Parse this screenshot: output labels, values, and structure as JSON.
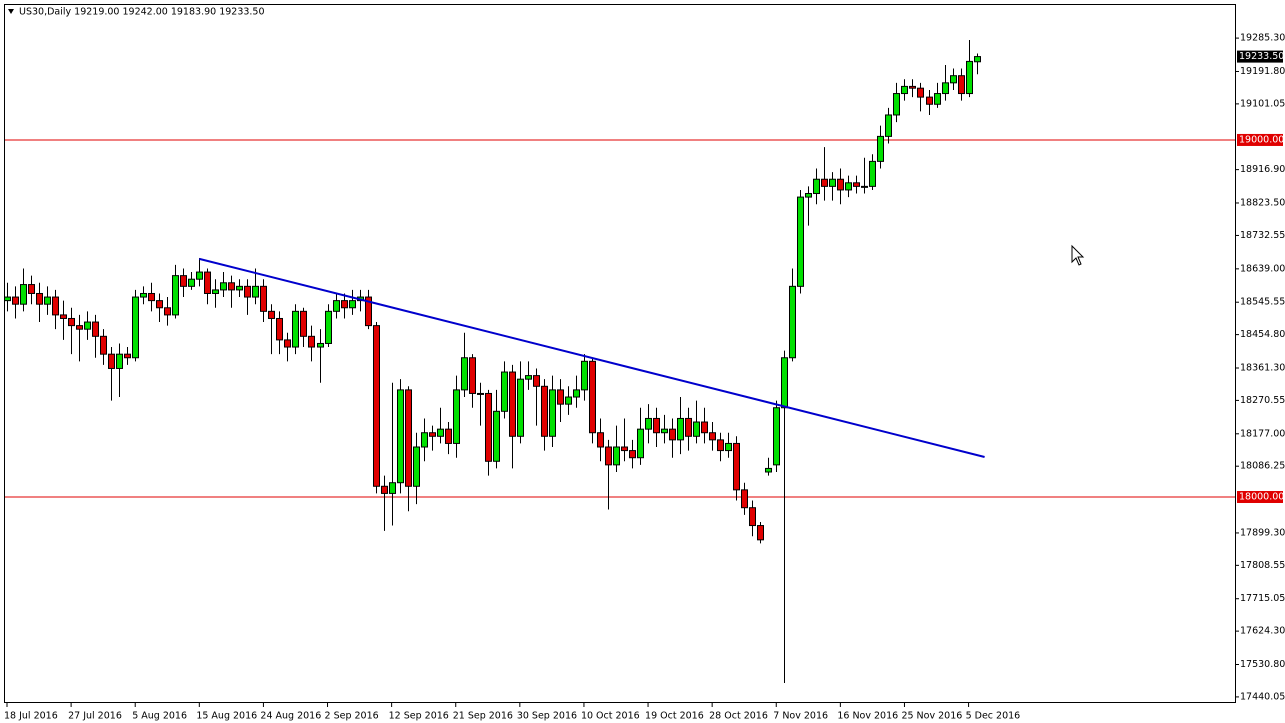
{
  "chart_data": {
    "type": "candlestick",
    "title": "US30,Daily  19219.00 19242.00 19183.90 19233.50",
    "categories": [
      "18 Jul 2016",
      null,
      null,
      null,
      null,
      null,
      null,
      null,
      "27 Jul 2016",
      null,
      null,
      null,
      null,
      null,
      null,
      null,
      "5 Aug 2016",
      null,
      null,
      null,
      null,
      null,
      null,
      null,
      "15 Aug 2016",
      null,
      null,
      null,
      null,
      null,
      null,
      null,
      "24 Aug 2016",
      null,
      null,
      null,
      null,
      null,
      null,
      null,
      "2 Sep 2016",
      null,
      null,
      null,
      null,
      null,
      null,
      null,
      "12 Sep 2016",
      null,
      null,
      null,
      null,
      null,
      null,
      null,
      "21 Sep 2016",
      null,
      null,
      null,
      null,
      null,
      null,
      null,
      "30 Sep 2016",
      null,
      null,
      null,
      null,
      null,
      null,
      null,
      "10 Oct 2016",
      null,
      null,
      null,
      null,
      null,
      null,
      null,
      "19 Oct 2016",
      null,
      null,
      null,
      null,
      null,
      null,
      null,
      "28 Oct 2016",
      null,
      null,
      null,
      null,
      null,
      null,
      null,
      "7 Nov 2016",
      null,
      null,
      null,
      null,
      null,
      null,
      null,
      "16 Nov 2016",
      null,
      null,
      null,
      null,
      null,
      null,
      null,
      "25 Nov 2016",
      null,
      null,
      null,
      null,
      null,
      null,
      null,
      "5 Dec 2016",
      null
    ],
    "open": [
      18550,
      18560,
      18540,
      18595,
      18570,
      18540,
      18560,
      18510,
      18500,
      18480,
      18470,
      18490,
      18450,
      18400,
      18360,
      18400,
      18390,
      18560,
      18570,
      18550,
      18530,
      18510,
      18620,
      18590,
      18610,
      18630,
      18570,
      18580,
      18600,
      18580,
      18590,
      18560,
      18590,
      18520,
      18500,
      18440,
      18420,
      18520,
      18450,
      18420,
      18430,
      18520,
      18550,
      18530,
      18550,
      18560,
      18480,
      18030,
      18010,
      18040,
      18300,
      18030,
      18140,
      18180,
      18170,
      18190,
      18150,
      18300,
      18390,
      18290,
      18290,
      18100,
      18240,
      18350,
      18170,
      18330,
      18340,
      18310,
      18170,
      18300,
      18260,
      18280,
      18300,
      18380,
      18180,
      18140,
      18090,
      18140,
      18130,
      18110,
      18190,
      18220,
      18180,
      18190,
      18160,
      18220,
      18170,
      18210,
      18180,
      18160,
      18130,
      18150,
      18020,
      17970,
      17920,
      18070,
      18090,
      18250,
      18390,
      18590,
      18840,
      18850,
      18890,
      18870,
      18890,
      18860,
      18880,
      18870,
      18870,
      18940,
      19010,
      19070,
      19130,
      19150,
      19145,
      19120,
      19100,
      19130,
      19160,
      19180,
      19130,
      19219
    ],
    "high": [
      18600,
      18590,
      18640,
      18620,
      18600,
      18590,
      18580,
      18550,
      18530,
      18510,
      18520,
      18510,
      18470,
      18420,
      18430,
      18420,
      18580,
      18590,
      18600,
      18570,
      18560,
      18650,
      18640,
      18630,
      18669,
      18640,
      18610,
      18630,
      18620,
      18610,
      18610,
      18640,
      18610,
      18540,
      18520,
      18460,
      18540,
      18530,
      18480,
      18470,
      18540,
      18570,
      18570,
      18580,
      18580,
      18580,
      18490,
      18060,
      18320,
      18330,
      18310,
      18180,
      18220,
      18200,
      18250,
      18210,
      18340,
      18460,
      18400,
      18320,
      18300,
      18300,
      18380,
      18370,
      18380,
      18380,
      18360,
      18330,
      18340,
      18330,
      18310,
      18340,
      18400,
      18390,
      18220,
      18160,
      18200,
      18220,
      18160,
      18250,
      18260,
      18250,
      18230,
      18220,
      18280,
      18250,
      18270,
      18250,
      18210,
      18180,
      18180,
      18170,
      18040,
      17990,
      17930,
      18110,
      18270,
      18410,
      18640,
      18860,
      18870,
      18920,
      18980,
      18910,
      18920,
      18900,
      18900,
      18950,
      18960,
      19040,
      19090,
      19160,
      19170,
      19170,
      19160,
      19140,
      19160,
      19210,
      19200,
      19200,
      19280,
      19242
    ],
    "low": [
      18520,
      18500,
      18520,
      18540,
      18490,
      18510,
      18470,
      18440,
      18400,
      18380,
      18440,
      18390,
      18370,
      18270,
      18280,
      18370,
      18380,
      18540,
      18520,
      18490,
      18480,
      18500,
      18560,
      18580,
      18590,
      18540,
      18530,
      18560,
      18530,
      18560,
      18510,
      18540,
      18490,
      18400,
      18400,
      18380,
      18400,
      18420,
      18380,
      18320,
      18420,
      18500,
      18500,
      18510,
      18520,
      18470,
      18010,
      17905,
      17920,
      18010,
      17960,
      17980,
      18100,
      18130,
      18150,
      18120,
      18110,
      18280,
      18250,
      18200,
      18060,
      18080,
      18220,
      18080,
      18150,
      18300,
      18200,
      18130,
      18140,
      18210,
      18230,
      18250,
      18270,
      18150,
      18100,
      17965,
      18070,
      18100,
      18080,
      18090,
      18150,
      18140,
      18150,
      18110,
      18120,
      18130,
      18150,
      18150,
      18130,
      18100,
      18110,
      17990,
      17950,
      17890,
      17870,
      18060,
      18070,
      17479,
      18380,
      18570,
      18760,
      18820,
      18830,
      18830,
      18820,
      18840,
      18850,
      18850,
      18860,
      18920,
      18990,
      19050,
      19110,
      19120,
      19080,
      19070,
      19090,
      19110,
      19140,
      19110,
      19120,
      19183.9
    ],
    "close": [
      18560,
      18540,
      18595,
      18570,
      18540,
      18560,
      18510,
      18500,
      18480,
      18470,
      18490,
      18450,
      18400,
      18360,
      18400,
      18390,
      18560,
      18570,
      18550,
      18530,
      18510,
      18620,
      18590,
      18610,
      18630,
      18570,
      18580,
      18600,
      18580,
      18590,
      18560,
      18590,
      18520,
      18500,
      18440,
      18420,
      18520,
      18450,
      18420,
      18430,
      18520,
      18550,
      18530,
      18550,
      18560,
      18480,
      18030,
      18010,
      18040,
      18300,
      18030,
      18140,
      18180,
      18170,
      18190,
      18150,
      18300,
      18390,
      18290,
      18290,
      18100,
      18240,
      18350,
      18170,
      18330,
      18340,
      18310,
      18170,
      18300,
      18260,
      18280,
      18300,
      18380,
      18180,
      18140,
      18090,
      18140,
      18130,
      18110,
      18190,
      18220,
      18180,
      18190,
      18160,
      18220,
      18170,
      18210,
      18180,
      18160,
      18130,
      18150,
      18020,
      17970,
      17920,
      17880,
      18080,
      18250,
      18390,
      18590,
      18840,
      18850,
      18890,
      18870,
      18890,
      18860,
      18880,
      18870,
      18870,
      18940,
      19010,
      19070,
      19130,
      19150,
      19145,
      19120,
      19100,
      19130,
      19160,
      19180,
      19130,
      19220,
      19233.5
    ],
    "up_color": "#00e000",
    "down_color": "#e00000",
    "xlim": [
      -0.25,
      153.25
    ],
    "ylim": [
      17423,
      19378
    ],
    "yticks": [
      {
        "value": 19285.3,
        "label": "19285.30"
      },
      {
        "value": 19191.8,
        "label": "19191.80"
      },
      {
        "value": 19101.05,
        "label": "19101.05"
      },
      {
        "value": 18916.9,
        "label": "18916.90"
      },
      {
        "value": 18823.5,
        "label": "18823.50"
      },
      {
        "value": 18732.55,
        "label": "18732.55"
      },
      {
        "value": 18639,
        "label": "18639.00"
      },
      {
        "value": 18545.55,
        "label": "18545.55"
      },
      {
        "value": 18454.8,
        "label": "18454.80"
      },
      {
        "value": 18361.3,
        "label": "18361.30"
      },
      {
        "value": 18270.55,
        "label": "18270.55"
      },
      {
        "value": 18177,
        "label": "18177.00"
      },
      {
        "value": 18086.25,
        "label": "18086.25"
      },
      {
        "value": 17899.3,
        "label": "17899.30"
      },
      {
        "value": 17808.55,
        "label": "17808.55"
      },
      {
        "value": 17715.05,
        "label": "17715.05"
      },
      {
        "value": 17624.3,
        "label": "17624.30"
      },
      {
        "value": 17530.8,
        "label": "17530.80"
      },
      {
        "value": 17440.05,
        "label": "17440.05"
      }
    ],
    "hlines": [
      {
        "value": 19000,
        "label": "19000.00",
        "color": "#e00000"
      },
      {
        "value": 18000,
        "label": "18000.00",
        "color": "#e00000"
      }
    ],
    "last_price": {
      "value": 19233.5,
      "label": "19233.50"
    },
    "trendline": {
      "x": [
        24,
        122
      ],
      "y": [
        18667,
        18112
      ],
      "color": "#0000cc"
    }
  }
}
